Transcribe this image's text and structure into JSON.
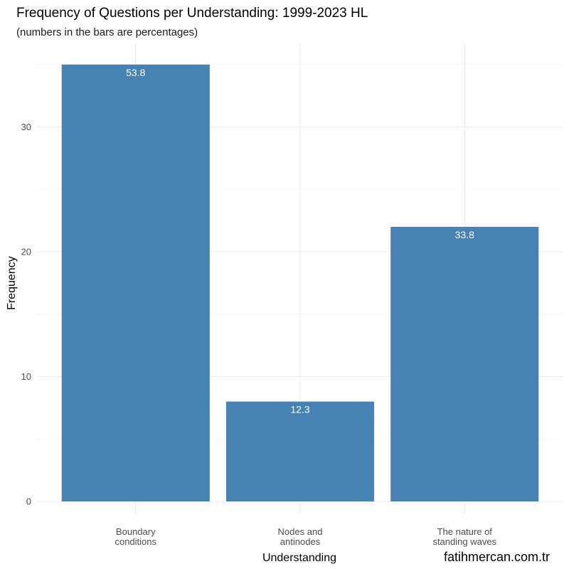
{
  "chart_data": {
    "type": "bar",
    "title": "Frequency of Questions per Understanding: 1999-2023 HL",
    "subtitle": "(numbers in the bars are percentages)",
    "xlabel": "Understanding",
    "ylabel": "Frequency",
    "caption": "fatihmercan.com.tr",
    "categories": [
      [
        "Boundary",
        "conditions"
      ],
      [
        "Nodes and",
        "antinodes"
      ],
      [
        "The nature of",
        "standing waves"
      ]
    ],
    "values": [
      35,
      8,
      22
    ],
    "bar_labels": [
      "53.8",
      "12.3",
      "33.8"
    ],
    "ylim": [
      0,
      36
    ],
    "y_ticks": [
      0,
      10,
      20,
      30
    ],
    "y_tick_labels": [
      "0",
      "10",
      "20",
      "30"
    ],
    "grid": true,
    "bar_color": "#4682b4"
  }
}
